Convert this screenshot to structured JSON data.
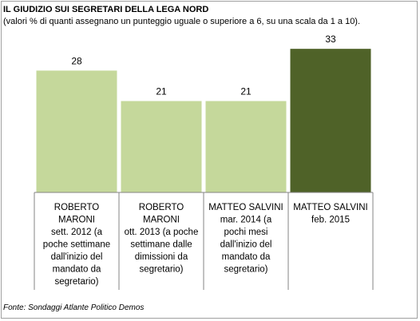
{
  "chart_data": {
    "type": "bar",
    "title": "IL GIUDIZIO SUI SEGRETARI DELLA LEGA NORD",
    "subtitle": "(valori % di quanti assegnano un punteggio uguale o superiore a 6, su una scala da 1 a 10).",
    "categories": [
      [
        "ROBERTO",
        "MARONI",
        "sett. 2012 (a",
        "poche settimane",
        "dall'inizio del",
        "mandato da",
        "segretario)"
      ],
      [
        "ROBERTO",
        "MARONI",
        "ott. 2013 (a poche",
        "settimane dalle",
        "dimissioni da",
        "segretario)"
      ],
      [
        "MATTEO SALVINI",
        "mar. 2014 (a",
        "pochi mesi",
        "dall'inizio del",
        "mandato da",
        "segretario)"
      ],
      [
        "MATTEO SALVINI",
        "feb. 2015"
      ]
    ],
    "values": [
      28,
      21,
      21,
      33
    ],
    "data_labels": [
      "28",
      "21",
      "21",
      "33"
    ],
    "bar_colors": [
      "#c5d89b",
      "#c5d89b",
      "#c5d89b",
      "#4f6228"
    ],
    "ylim": [
      0,
      35
    ],
    "grid": false,
    "legend": "none",
    "xlabel": "",
    "ylabel": ""
  },
  "source": "Fonte: Sondaggi Atlante Politico Demos"
}
